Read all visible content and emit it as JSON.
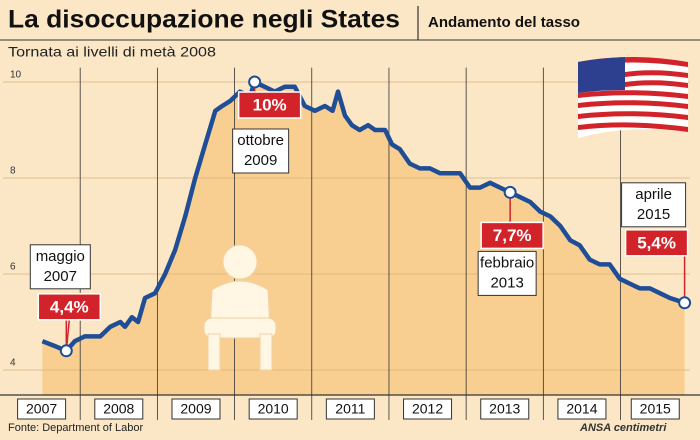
{
  "chart_data": {
    "type": "line",
    "title": "La disoccupazione negli States",
    "subtitle_right": "Andamento del tasso",
    "subtitle": "Tornata ai livelli di metà 2008",
    "source": "Fonte: Department of Labor",
    "credit": "ANSA centimetri",
    "xlim": [
      2007,
      2015.9
    ],
    "xticks": [
      2007,
      2008,
      2009,
      2010,
      2011,
      2012,
      2013,
      2014,
      2015
    ],
    "ylim": [
      3.9,
      10.3
    ],
    "yticks": [
      4,
      6,
      8,
      10
    ],
    "grid": true,
    "series": [
      {
        "color": "#1f4e96",
        "x": [
          2007.51,
          2007.67,
          2007.82,
          2007.93,
          2008.06,
          2008.26,
          2008.39,
          2008.52,
          2008.58,
          2008.67,
          2008.75,
          2008.84,
          2008.97,
          2009.1,
          2009.23,
          2009.36,
          2009.49,
          2009.62,
          2009.75,
          2009.84,
          2009.94,
          2010.07,
          2010.2,
          2010.26,
          2010.39,
          2010.52,
          2010.65,
          2010.78,
          2010.91,
          2011.04,
          2011.17,
          2011.27,
          2011.34,
          2011.43,
          2011.52,
          2011.62,
          2011.73,
          2011.82,
          2011.95,
          2012.04,
          2012.14,
          2012.27,
          2012.4,
          2012.53,
          2012.66,
          2012.79,
          2012.92,
          2013.05,
          2013.18,
          2013.31,
          2013.44,
          2013.57,
          2013.7,
          2013.83,
          2013.96,
          2014.09,
          2014.22,
          2014.35,
          2014.47,
          2014.6,
          2014.73,
          2014.86,
          2014.99,
          2015.12,
          2015.25,
          2015.38,
          2015.51,
          2015.64,
          2015.83
        ],
        "values": [
          4.6,
          4.5,
          4.4,
          4.6,
          4.7,
          4.7,
          4.9,
          5.0,
          4.9,
          5.1,
          5.0,
          5.5,
          5.6,
          6.0,
          6.5,
          7.2,
          8.0,
          8.7,
          9.4,
          9.5,
          9.6,
          9.8,
          9.7,
          10.0,
          9.9,
          9.8,
          9.9,
          9.9,
          9.5,
          9.4,
          9.5,
          9.4,
          9.8,
          9.3,
          9.1,
          9.0,
          9.1,
          9.0,
          9.0,
          8.7,
          8.6,
          8.3,
          8.2,
          8.2,
          8.1,
          8.1,
          8.1,
          7.8,
          7.8,
          7.9,
          7.8,
          7.7,
          7.6,
          7.5,
          7.3,
          7.2,
          7.0,
          6.7,
          6.6,
          6.3,
          6.2,
          6.2,
          5.9,
          5.8,
          5.7,
          5.7,
          5.6,
          5.5,
          5.4
        ]
      }
    ],
    "annotations": [
      {
        "lines": [
          "maggio",
          "2007"
        ],
        "x": 2007.82,
        "value": 4.4,
        "value_label": "4,4%"
      },
      {
        "lines": [
          "ottobre",
          "2009"
        ],
        "x": 2010.26,
        "value": 10.0,
        "value_label": "10%"
      },
      {
        "lines": [
          "febbraio",
          "2013"
        ],
        "x": 2013.57,
        "value": 7.7,
        "value_label": "7,7%"
      },
      {
        "lines": [
          "aprile",
          "2015"
        ],
        "x": 2015.83,
        "value": 5.4,
        "value_label": "5,4%"
      }
    ]
  }
}
